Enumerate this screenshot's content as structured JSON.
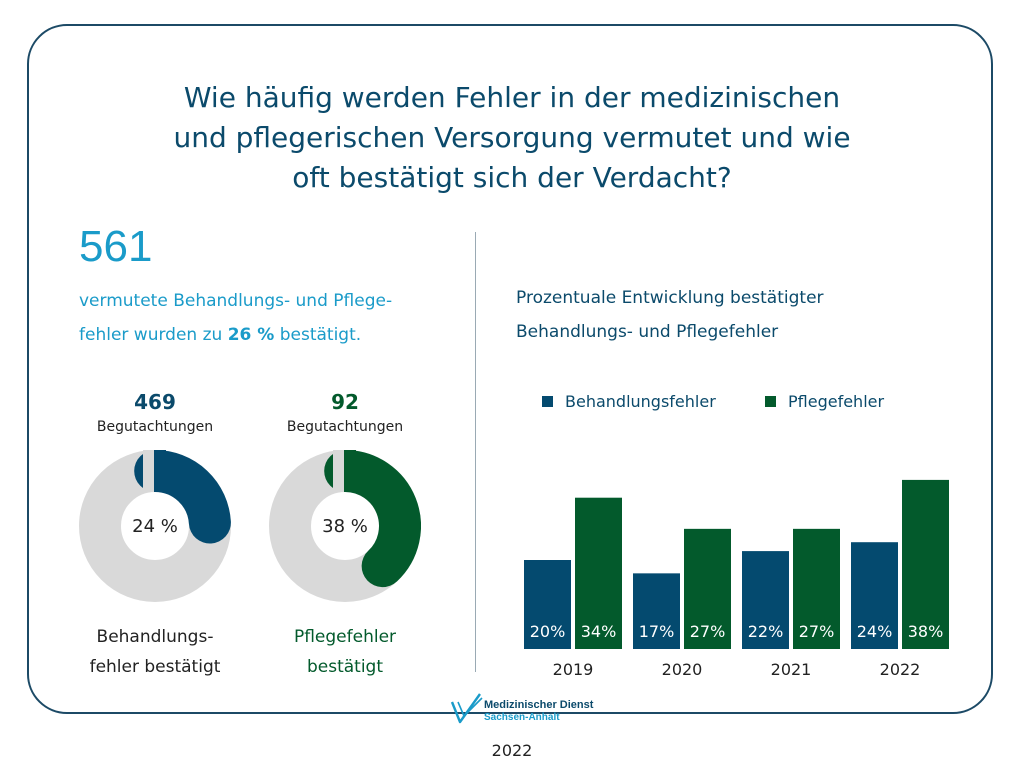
{
  "title": {
    "line1": "Wie häufig werden Fehler in der medizinischen",
    "line2": "und pflegerischen Versorgung vermutet und wie",
    "line3": "oft bestätigt sich der Verdacht?"
  },
  "summary": {
    "total": "561",
    "line1": "vermutete Behandlungs- und Pflege-",
    "line2_pre": "fehler wurden zu ",
    "line2_bold": "26 %",
    "line2_post": " bestätigt."
  },
  "donuts": [
    {
      "count": "469",
      "unit": "Begutachtungen",
      "percent": 24,
      "percent_label": "24 %",
      "caption_line1": "Behandlungs-",
      "caption_line2": "fehler bestätigt",
      "color": "#044a6f",
      "caption_color": "#222222"
    },
    {
      "count": "92",
      "unit": "Begutachtungen",
      "percent": 38,
      "percent_label": "38 %",
      "caption_line1": "Pflegefehler",
      "caption_line2": "bestätigt",
      "color": "#035a2c",
      "caption_color": "#035a2c"
    }
  ],
  "colors": {
    "donut_track": "#d9d9d9",
    "behandlung": "#044a6f",
    "pflege": "#035a2c"
  },
  "chart_data": {
    "type": "bar",
    "title": "Prozentuale Entwicklung bestätigter Behandlungs- und Pflegefehler",
    "title_line1": "Prozentuale Entwicklung bestätigter",
    "title_line2": "Behandlungs- und Pflegefehler",
    "categories": [
      "2019",
      "2020",
      "2021",
      "2022"
    ],
    "series": [
      {
        "name": "Behandlungsfehler",
        "values": [
          20,
          17,
          22,
          24
        ],
        "labels": [
          "20%",
          "17%",
          "22%",
          "24%"
        ],
        "color": "#044a6f"
      },
      {
        "name": "Pflegefehler",
        "values": [
          34,
          27,
          27,
          38
        ],
        "labels": [
          "34%",
          "27%",
          "27%",
          "38%"
        ],
        "color": "#035a2c"
      }
    ],
    "legend": "top",
    "grid": false,
    "ylim": [
      0,
      40
    ]
  },
  "logo": {
    "line1": "Medizinischer Dienst",
    "line2": "Sachsen-Anhalt"
  },
  "footer": {
    "year": "2022"
  }
}
